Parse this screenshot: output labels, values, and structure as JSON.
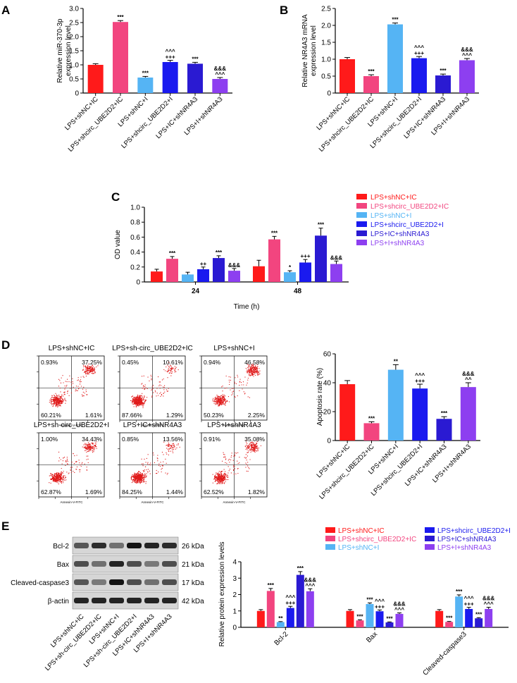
{
  "palette": [
    "#ff1a1a",
    "#f2457f",
    "#55b4f4",
    "#1a1aef",
    "#2a1ad2",
    "#8d3ff0"
  ],
  "panelA": {
    "letter": "A",
    "chart_data": {
      "type": "bar",
      "ylabel": "Relative miR-370-3p\nexpression level",
      "ylim": [
        0,
        3
      ],
      "yticks": [
        0,
        0.5,
        1.0,
        1.5,
        2.0,
        2.5,
        3.0
      ],
      "tick_labels": [
        "0",
        "0.5",
        "1.0",
        "1.5",
        "2.0",
        "2.5",
        "3.0"
      ],
      "categories": [
        "LPS+shNC+IC",
        "LPS+shcirc_UBE2D2+IC",
        "LPS+shNC+I",
        "LPS+shcirc_UBE2D2+I",
        "LPS+IC+shNR4A3",
        "LPS+I+shNR4A3"
      ],
      "values": [
        1.0,
        2.52,
        0.55,
        1.1,
        1.04,
        0.5
      ],
      "errors": [
        0.04,
        0.05,
        0.04,
        0.06,
        0.05,
        0.05
      ],
      "annotations": [
        "",
        "***",
        "***",
        "^^^\n+++",
        "***",
        "&&&\n^^^"
      ]
    }
  },
  "panelB": {
    "letter": "B",
    "chart_data": {
      "type": "bar",
      "ylabel": "Relative NR4A3 mRNA\nexpression level",
      "ylim": [
        0,
        2.5
      ],
      "yticks": [
        0,
        0.5,
        1.0,
        1.5,
        2.0,
        2.5
      ],
      "tick_labels": [
        "0",
        "0.5",
        "1.0",
        "1.5",
        "2.0",
        "2.5"
      ],
      "categories": [
        "LPS+shNC+IC",
        "LPS+shcirc_UBE2D2+IC",
        "LPS+shNC+I",
        "LPS+shcirc_UBE2D2+I",
        "LPS+IC+shNR4A3",
        "LPS+I+shNR4A3"
      ],
      "values": [
        1.0,
        0.5,
        2.03,
        1.03,
        0.52,
        0.97
      ],
      "errors": [
        0.05,
        0.04,
        0.04,
        0.05,
        0.04,
        0.05
      ],
      "annotations": [
        "",
        "***",
        "***",
        "^^^\n+++",
        "***",
        "&&&\n^^^"
      ]
    }
  },
  "panelC": {
    "letter": "C",
    "chart_data": {
      "type": "bar",
      "xlabel": "Time (h)",
      "ylabel": "OD value",
      "ylim": [
        0,
        1.0
      ],
      "yticks": [
        0,
        0.2,
        0.4,
        0.6,
        0.8,
        1.0
      ],
      "tick_labels": [
        "0",
        "0.2",
        "0.4",
        "0.6",
        "0.8",
        "1.0"
      ],
      "categories": [
        "24",
        "48"
      ],
      "series": [
        {
          "name": "LPS+shNC+IC",
          "values": [
            0.14,
            0.21
          ],
          "errors": [
            0.03,
            0.08
          ],
          "annotations": [
            "",
            ""
          ]
        },
        {
          "name": "LPS+shcirc_UBE2D2+IC",
          "values": [
            0.31,
            0.57
          ],
          "errors": [
            0.03,
            0.04
          ],
          "annotations": [
            "***",
            "***"
          ]
        },
        {
          "name": "LPS+shNC+I",
          "values": [
            0.1,
            0.13
          ],
          "errors": [
            0.03,
            0.02
          ],
          "annotations": [
            "",
            "*"
          ]
        },
        {
          "name": "LPS+shcirc_UBE2D2+I",
          "values": [
            0.17,
            0.26
          ],
          "errors": [
            0.03,
            0.04
          ],
          "annotations": [
            "++",
            "+++"
          ]
        },
        {
          "name": "LPS+IC+shNR4A3",
          "values": [
            0.32,
            0.62
          ],
          "errors": [
            0.03,
            0.1
          ],
          "annotations": [
            "***",
            "***"
          ]
        },
        {
          "name": "LPS+I+shNR4A3",
          "values": [
            0.15,
            0.24
          ],
          "errors": [
            0.03,
            0.04
          ],
          "annotations": [
            "&&&",
            "&&&"
          ]
        }
      ],
      "legend": [
        "LPS+shNC+IC",
        "LPS+shcirc_UBE2D2+IC",
        "LPS+shNC+I",
        "LPS+shcirc_UBE2D2+I",
        "LPS+IC+shNR4A3",
        "LPS+I+shNR4A3"
      ],
      "legend_position": "right"
    }
  },
  "panelD": {
    "letter": "D",
    "flow_axis_label": "Annexin-V-FITC",
    "flow_plots": [
      {
        "title": "LPS+shNC+IC",
        "quadrants": [
          "0.93%",
          "37.25%",
          "60.21%",
          "1.61%"
        ]
      },
      {
        "title": "LPS+sh-circ_UBE2D2+IC",
        "quadrants": [
          "0.45%",
          "10.61%",
          "87.66%",
          "1.29%"
        ]
      },
      {
        "title": "LPS+shNC+I",
        "quadrants": [
          "0.94%",
          "46.58%",
          "50.23%",
          "2.25%"
        ]
      },
      {
        "title": "LPS+sh-circ_UBE2D2+I",
        "quadrants": [
          "1.00%",
          "34.43%",
          "62.87%",
          "1.69%"
        ]
      },
      {
        "title": "LPS+IC+shNR4A3",
        "quadrants": [
          "0.85%",
          "13.56%",
          "84.25%",
          "1.44%"
        ]
      },
      {
        "title": "LPS+I+shNR4A3",
        "quadrants": [
          "0.91%",
          "35.08%",
          "62.52%",
          "1.82%"
        ]
      }
    ],
    "chart_data": {
      "type": "bar",
      "ylabel": "Apoptosis rate (%)",
      "ylim": [
        0,
        60
      ],
      "yticks": [
        0,
        20,
        40,
        60
      ],
      "tick_labels": [
        "0",
        "20",
        "40",
        "60"
      ],
      "categories": [
        "LPS+shNC+IC",
        "LPS+shcirc_UBE2D2+IC",
        "LPS+shNC+I",
        "LPS+shcirc_UBE2D2+I",
        "LPS+IC+shNR4A3",
        "LPS+I+shNR4A3"
      ],
      "values": [
        39,
        12,
        49,
        36,
        15,
        37
      ],
      "errors": [
        2.5,
        1.0,
        3.5,
        3.0,
        1.5,
        3.0
      ],
      "annotations": [
        "",
        "***",
        "**",
        "^^^\n+++",
        "***",
        "&&&\n^^"
      ]
    }
  },
  "panelE": {
    "letter": "E",
    "blot": {
      "proteins": [
        "Bcl-2",
        "Bax",
        "Cleaved-caspase3",
        "β-actin"
      ],
      "sizes": [
        "26 kDa",
        "21 kDa",
        "17 kDa",
        "42 kDa"
      ],
      "lanes": [
        "LPS+shNC+IC",
        "LPS+sh-circ_UBE2D2+IC",
        "LPS+shNC+I",
        "LPS+sh-circ_UBE2D2+I",
        "LPS+IC+shNR4A3",
        "LPS+I+shNR4A3"
      ],
      "intensity": [
        [
          0.55,
          0.8,
          0.4,
          0.95,
          0.85,
          0.8
        ],
        [
          0.6,
          0.4,
          0.85,
          0.6,
          0.35,
          0.6
        ],
        [
          0.55,
          0.35,
          0.95,
          0.6,
          0.4,
          0.6
        ],
        [
          0.85,
          0.85,
          0.85,
          0.85,
          0.85,
          0.85
        ]
      ]
    },
    "chart_data": {
      "type": "bar",
      "ylabel": "Relative protein expression levels",
      "ylim": [
        0,
        4
      ],
      "yticks": [
        0,
        1,
        2,
        3,
        4
      ],
      "tick_labels": [
        "0",
        "1",
        "2",
        "3",
        "4"
      ],
      "categories": [
        "Bcl-2",
        "Bax",
        "Cleaved-caspase3"
      ],
      "series": [
        {
          "name": "LPS+shNC+IC",
          "values": [
            1.0,
            1.0,
            1.0
          ],
          "errors": [
            0.08,
            0.08,
            0.08
          ],
          "annotations": [
            "",
            "",
            ""
          ]
        },
        {
          "name": "LPS+shcirc_UBE2D2+IC",
          "values": [
            2.22,
            0.42,
            0.33
          ],
          "errors": [
            0.15,
            0.04,
            0.03
          ],
          "annotations": [
            "***",
            "***",
            "***"
          ]
        },
        {
          "name": "LPS+shNC+I",
          "values": [
            0.32,
            1.42,
            1.88
          ],
          "errors": [
            0.03,
            0.07,
            0.1
          ],
          "annotations": [
            "**",
            "***",
            "***"
          ]
        },
        {
          "name": "LPS+shcirc_UBE2D2+I",
          "values": [
            1.18,
            0.98,
            1.12
          ],
          "errors": [
            0.1,
            0.08,
            0.1
          ],
          "annotations": [
            "^^^\n+++",
            "^^^\n+++",
            "^^^\n+++"
          ]
        },
        {
          "name": "LPS+IC+shNR4A3",
          "values": [
            3.2,
            0.3,
            0.55
          ],
          "errors": [
            0.2,
            0.03,
            0.04
          ],
          "annotations": [
            "***",
            "***",
            "***"
          ]
        },
        {
          "name": "LPS+I+shNR4A3",
          "values": [
            2.2,
            0.82,
            1.12
          ],
          "errors": [
            0.15,
            0.06,
            0.1
          ],
          "annotations": [
            "&&&\n^^^",
            "&&&\n^^^",
            "&&&\n^^^"
          ]
        }
      ],
      "legend": [
        "LPS+shNC+IC",
        "LPS+shcirc_UBE2D2+IC",
        "LPS+shNC+I",
        "LPS+shcirc_UBE2D2+I",
        "LPS+IC+shNR4A3",
        "LPS+I+shNR4A3"
      ],
      "legend_position": "top"
    }
  }
}
